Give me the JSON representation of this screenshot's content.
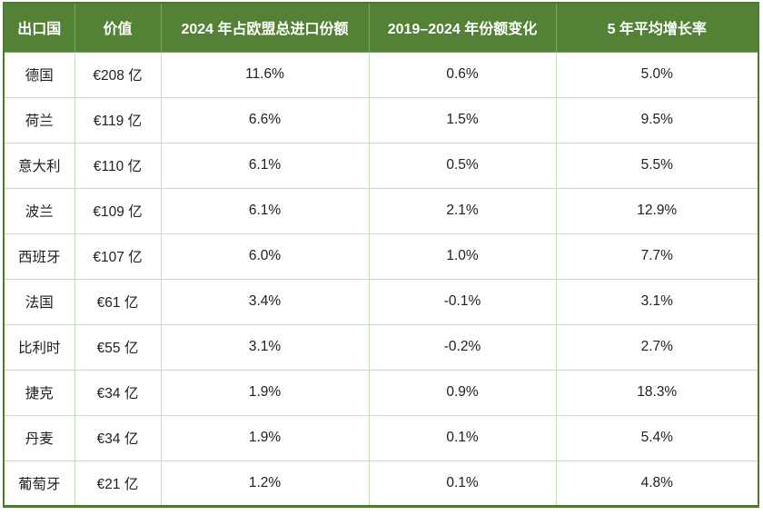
{
  "colors": {
    "header-bg": "#538135",
    "header-text": "#ffffff",
    "grid-border": "#c5e0b3",
    "outer-border": "#4e7a2f",
    "body-text": "#212121",
    "row-bg": "#ffffff"
  },
  "table": {
    "columns": {
      "country": "出口国",
      "value": "价值",
      "share_2024": "2024 年占欧盟总进口份额",
      "change_2019_2024": "2019–2024 年份额变化",
      "avg_growth_5y": "5 年平均增长率"
    },
    "rows": [
      {
        "country": "德国",
        "value": "€208 亿",
        "share_2024": "11.6%",
        "change_2019_2024": "0.6%",
        "avg_growth_5y": "5.0%"
      },
      {
        "country": "荷兰",
        "value": "€119 亿",
        "share_2024": "6.6%",
        "change_2019_2024": "1.5%",
        "avg_growth_5y": "9.5%"
      },
      {
        "country": "意大利",
        "value": "€110 亿",
        "share_2024": "6.1%",
        "change_2019_2024": "0.5%",
        "avg_growth_5y": "5.5%"
      },
      {
        "country": "波兰",
        "value": "€109 亿",
        "share_2024": "6.1%",
        "change_2019_2024": "2.1%",
        "avg_growth_5y": "12.9%"
      },
      {
        "country": "西班牙",
        "value": "€107 亿",
        "share_2024": "6.0%",
        "change_2019_2024": "1.0%",
        "avg_growth_5y": "7.7%"
      },
      {
        "country": "法国",
        "value": "€61 亿",
        "share_2024": "3.4%",
        "change_2019_2024": "-0.1%",
        "avg_growth_5y": "3.1%"
      },
      {
        "country": "比利时",
        "value": "€55 亿",
        "share_2024": "3.1%",
        "change_2019_2024": "-0.2%",
        "avg_growth_5y": "2.7%"
      },
      {
        "country": "捷克",
        "value": "€34 亿",
        "share_2024": "1.9%",
        "change_2019_2024": "0.9%",
        "avg_growth_5y": "18.3%"
      },
      {
        "country": "丹麦",
        "value": "€34 亿",
        "share_2024": "1.9%",
        "change_2019_2024": "0.1%",
        "avg_growth_5y": "5.4%"
      },
      {
        "country": "葡萄牙",
        "value": "€21 亿",
        "share_2024": "1.2%",
        "change_2019_2024": "0.1%",
        "avg_growth_5y": "4.8%"
      }
    ]
  },
  "chart_data": {
    "type": "table",
    "title": "",
    "columns": [
      "出口国",
      "价值",
      "2024 年占欧盟总进口份额",
      "2019–2024 年份额变化",
      "5 年平均增长率"
    ],
    "countries": [
      "德国",
      "荷兰",
      "意大利",
      "波兰",
      "西班牙",
      "法国",
      "比利时",
      "捷克",
      "丹麦",
      "葡萄牙"
    ],
    "series": [
      {
        "name": "价值 (€亿)",
        "values": [
          208,
          119,
          110,
          109,
          107,
          61,
          55,
          34,
          34,
          21
        ]
      },
      {
        "name": "2024 年占欧盟总进口份额 (%)",
        "values": [
          11.6,
          6.6,
          6.1,
          6.1,
          6.0,
          3.4,
          3.1,
          1.9,
          1.9,
          1.2
        ]
      },
      {
        "name": "2019–2024 年份额变化 (%)",
        "values": [
          0.6,
          1.5,
          0.5,
          2.1,
          1.0,
          -0.1,
          -0.2,
          0.9,
          0.1,
          0.1
        ]
      },
      {
        "name": "5 年平均增长率 (%)",
        "values": [
          5.0,
          9.5,
          5.5,
          12.9,
          7.7,
          3.1,
          2.7,
          18.3,
          5.4,
          4.8
        ]
      }
    ]
  }
}
